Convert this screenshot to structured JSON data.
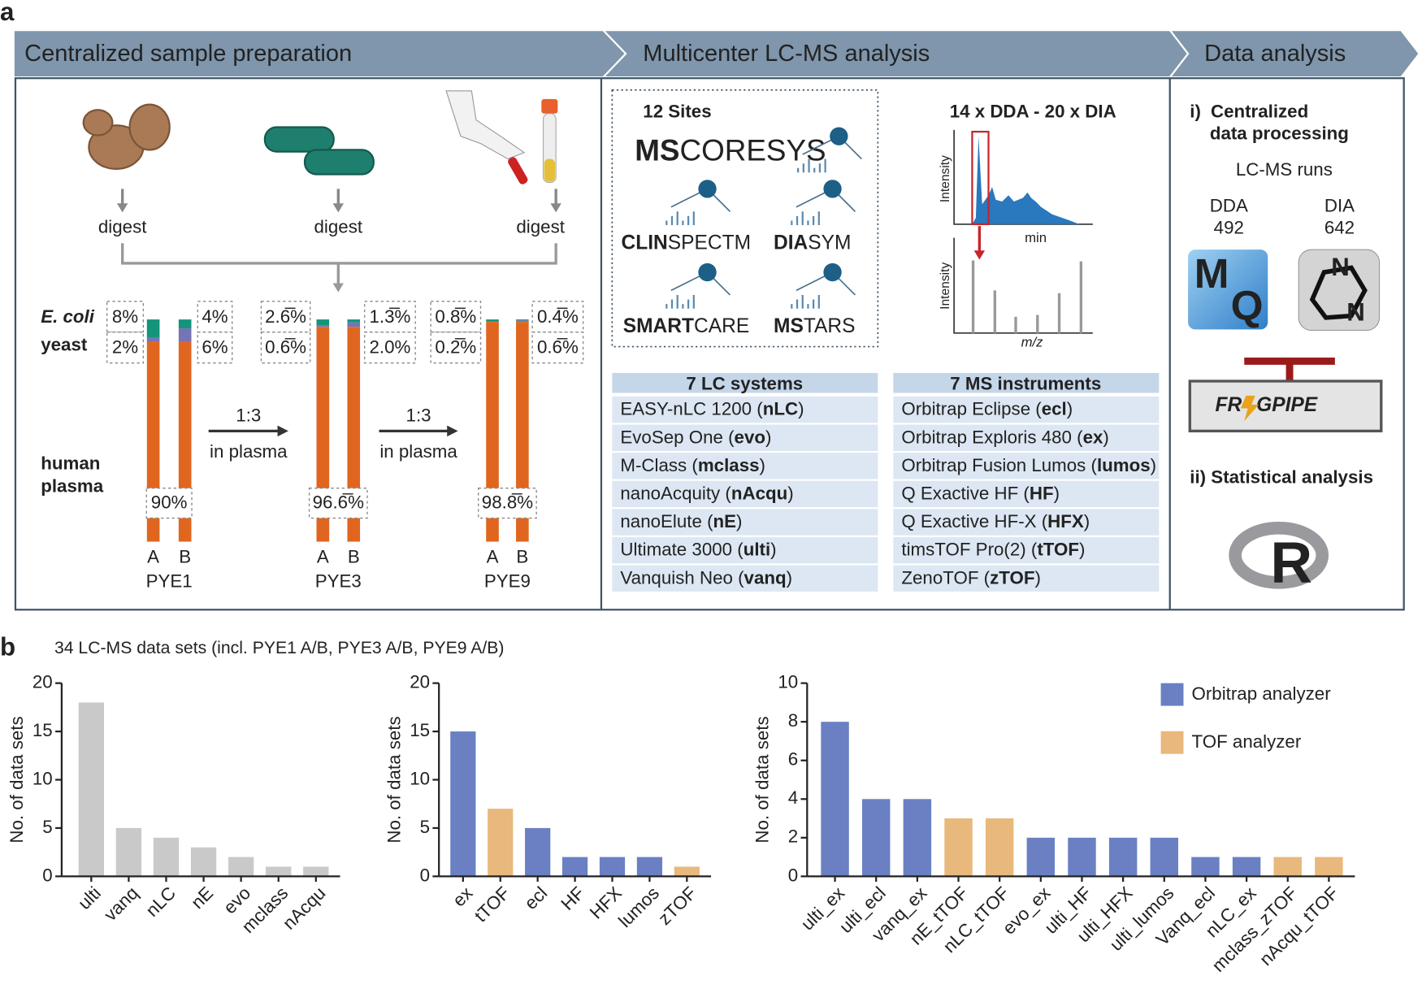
{
  "panel_a": {
    "label": "a",
    "headers": [
      "Centralized sample preparation",
      "Multicenter LC-MS analysis",
      "Data analysis"
    ],
    "sample_prep": {
      "digest": [
        "digest",
        "digest",
        "digest"
      ],
      "legend": {
        "ecoli": "E. coli",
        "yeast": "yeast",
        "human": [
          "human",
          "plasma"
        ]
      },
      "colors": [
        "#14947a",
        "#7474b6",
        "#e0661f"
      ],
      "mixtures": [
        {
          "name": "PYE1",
          "samples": [
            {
              "label": "A",
              "values": [
                8,
                2,
                90
              ]
            },
            {
              "label": "B",
              "values": [
                4,
                6,
                90
              ]
            }
          ],
          "value_labels": {
            "ecoli": [
              "8%",
              "4%"
            ],
            "yeast": [
              "2%",
              "6%"
            ],
            "human": "90%"
          }
        },
        {
          "name": "PYE3",
          "samples": [
            {
              "label": "A",
              "values": [
                2.667,
                0.667,
                96.667
              ]
            },
            {
              "label": "B",
              "values": [
                1.333,
                2.0,
                96.667
              ]
            }
          ],
          "value_labels": {
            "ecoli": [
              "2.6̅%",
              "1.3̅%"
            ],
            "yeast": [
              "0.6̅%",
              "2.0%"
            ],
            "human": "96.6̅%"
          }
        },
        {
          "name": "PYE9",
          "samples": [
            {
              "label": "A",
              "values": [
                0.889,
                0.222,
                98.889
              ]
            },
            {
              "label": "B",
              "values": [
                0.444,
                0.667,
                98.889
              ]
            }
          ],
          "value_labels": {
            "ecoli": [
              "0.8̅%",
              "0.4̅%"
            ],
            "yeast": [
              "0.2̅%",
              "0.6̅%"
            ],
            "human": "98.8̅%"
          }
        }
      ],
      "dilutions": [
        {
          "ratio": "1:3",
          "medium": "in plasma"
        },
        {
          "ratio": "1:3",
          "medium": "in plasma"
        }
      ]
    },
    "lcms": {
      "sites_title": "12 Sites",
      "logos": [
        [
          "MS",
          "CORESYS"
        ],
        [
          "CLIN",
          "SPECTM"
        ],
        [
          "DIA",
          "SYM"
        ],
        [
          "SMART",
          "CARE"
        ],
        [
          "MS",
          "TARS"
        ]
      ],
      "acquisition_title": "14 x DDA - 20 x DIA",
      "chromatogram": {
        "ylabel": "Intensity",
        "xlabel": "min"
      },
      "spectrum": {
        "ylabel": "Intensity",
        "xlabel": "m/z"
      },
      "lc_table": {
        "title": "7 LC systems",
        "rows": [
          [
            "EASY-nLC 1200 (",
            "nLC",
            ")"
          ],
          [
            "EvoSep One (",
            "evo",
            ")"
          ],
          [
            "M-Class (",
            "mclass",
            ")"
          ],
          [
            "nanoAcquity (",
            "nAcqu",
            ")"
          ],
          [
            "nanoElute (",
            "nE",
            ")"
          ],
          [
            "Ultimate 3000 (",
            "ulti",
            ")"
          ],
          [
            "Vanquish Neo (",
            "vanq",
            ")"
          ]
        ]
      },
      "ms_table": {
        "title": "7 MS instruments",
        "rows": [
          [
            "Orbitrap Eclipse (",
            "ecl",
            ")"
          ],
          [
            "Orbitrap Exploris 480 (",
            "ex",
            ")"
          ],
          [
            "Orbitrap Fusion Lumos (",
            "lumos",
            ")"
          ],
          [
            "Q Exactive HF (",
            "HF",
            ")"
          ],
          [
            "Q Exactive HF-X (",
            "HFX",
            ")"
          ],
          [
            "timsTOF Pro(2) (",
            "tTOF",
            ")"
          ],
          [
            "ZenoTOF (",
            "zTOF",
            ")"
          ]
        ]
      }
    },
    "data_analysis": {
      "step1_marker": "i)",
      "step1": [
        "Centralized",
        "data processing"
      ],
      "runs_title": "LC-MS runs",
      "runs": [
        {
          "mode": "DDA",
          "count": 492
        },
        {
          "mode": "DIA",
          "count": 642
        }
      ],
      "maxquant": [
        "M",
        "Q"
      ],
      "diann": [
        "N",
        "N"
      ],
      "fragpipe": [
        "FR",
        "GPIPE"
      ],
      "step2": "ii) Statistical analysis",
      "r_logo": "R"
    }
  },
  "panel_b": {
    "label": "b",
    "caption": "34 LC-MS data sets (incl. PYE1 A/B, PYE3 A/B, PYE9 A/B)"
  },
  "chart_data": [
    {
      "type": "bar",
      "categories": [
        "ulti",
        "vanq",
        "nLC",
        "nE",
        "evo",
        "mclass",
        "nAcqu"
      ],
      "values": [
        18,
        5,
        4,
        3,
        2,
        1,
        1
      ],
      "color": "#c9c9c9",
      "ylabel": "No. of data sets",
      "ylim": [
        0,
        20
      ],
      "yticks": [
        0,
        5,
        10,
        15,
        20
      ]
    },
    {
      "type": "bar",
      "categories": [
        "ex",
        "tTOF",
        "ecl",
        "HF",
        "HFX",
        "lumos",
        "zTOF"
      ],
      "values": [
        15,
        7,
        5,
        2,
        2,
        2,
        1
      ],
      "colors": [
        "#6a80c3",
        "#e9b87c",
        "#6a80c3",
        "#6a80c3",
        "#6a80c3",
        "#6a80c3",
        "#e9b87c"
      ],
      "ylabel": "No. of data sets",
      "ylim": [
        0,
        20
      ],
      "yticks": [
        0,
        5,
        10,
        15,
        20
      ]
    },
    {
      "type": "bar",
      "categories": [
        "ulti_ex",
        "ulti_ecl",
        "vanq_ex",
        "nE_tTOF",
        "nLC_tTOF",
        "evo_ex",
        "ulti_HF",
        "ulti_HFX",
        "ulti_lumos",
        "Vanq_ecl",
        "nLC_ex",
        "mclass_zTOF",
        "nAcqu_tTOF"
      ],
      "series": [
        {
          "name": "Orbitrap analyzer",
          "color": "#6a80c3",
          "values": [
            8,
            4,
            4,
            null,
            null,
            2,
            2,
            2,
            2,
            1,
            1,
            null,
            null
          ]
        },
        {
          "name": "TOF analyzer",
          "color": "#e9b87c",
          "values": [
            null,
            null,
            null,
            3,
            3,
            null,
            null,
            null,
            null,
            null,
            null,
            1,
            1
          ]
        }
      ],
      "ylabel": "No. of data sets",
      "ylim": [
        0,
        10
      ],
      "yticks": [
        0,
        2,
        4,
        6,
        8,
        10
      ],
      "legend": "top-right"
    }
  ]
}
